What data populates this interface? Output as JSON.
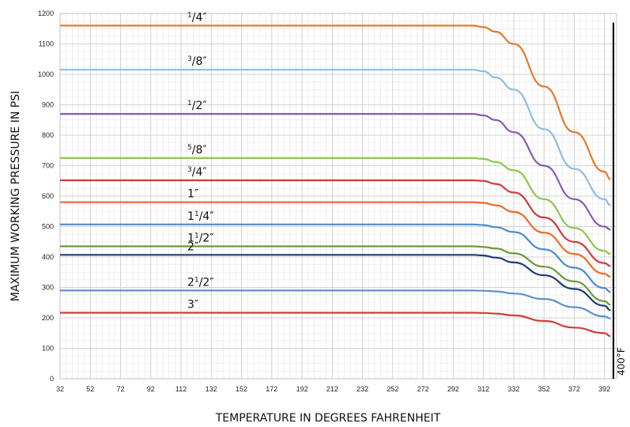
{
  "chart_data": {
    "type": "line",
    "xlabel": "TEMPERATURE IN DEGREES FAHRENHEIT",
    "ylabel": "MAXIMUM WORKING PRESSURE IN PSI",
    "xlim": [
      32,
      400
    ],
    "ylim": [
      0,
      1200
    ],
    "x_ticks": [
      32,
      52,
      72,
      92,
      112,
      132,
      152,
      172,
      192,
      212,
      232,
      252,
      272,
      292,
      312,
      332,
      352,
      372,
      392
    ],
    "y_ticks": [
      0,
      100,
      200,
      300,
      400,
      500,
      600,
      700,
      800,
      900,
      1000,
      1100,
      1200
    ],
    "grid": true,
    "reference_line": {
      "x": 400,
      "label": "400°F"
    },
    "series": [
      {
        "name": "1/4″",
        "label": {
          "pre": "",
          "sup": "1",
          "sub": "/4″"
        },
        "color": "#e8782a",
        "points": [
          [
            32,
            1160
          ],
          [
            305,
            1160
          ],
          [
            312,
            1155
          ],
          [
            320,
            1140
          ],
          [
            332,
            1100
          ],
          [
            352,
            960
          ],
          [
            372,
            810
          ],
          [
            392,
            680
          ],
          [
            396,
            655
          ]
        ]
      },
      {
        "name": "3/8″",
        "label": {
          "pre": "",
          "sup": "3",
          "sub": "/8″"
        },
        "color": "#8fbde0",
        "points": [
          [
            32,
            1015
          ],
          [
            305,
            1015
          ],
          [
            312,
            1010
          ],
          [
            320,
            990
          ],
          [
            332,
            950
          ],
          [
            352,
            820
          ],
          [
            372,
            690
          ],
          [
            392,
            590
          ],
          [
            396,
            570
          ]
        ]
      },
      {
        "name": "1/2″",
        "label": {
          "pre": "",
          "sup": "1",
          "sub": "/2″"
        },
        "color": "#8a5bb0",
        "points": [
          [
            32,
            870
          ],
          [
            305,
            870
          ],
          [
            312,
            865
          ],
          [
            320,
            850
          ],
          [
            332,
            810
          ],
          [
            352,
            700
          ],
          [
            372,
            590
          ],
          [
            392,
            500
          ],
          [
            396,
            490
          ]
        ]
      },
      {
        "name": "5/8″",
        "label": {
          "pre": "",
          "sup": "5",
          "sub": "/8″"
        },
        "color": "#8cc84b",
        "points": [
          [
            32,
            725
          ],
          [
            305,
            725
          ],
          [
            312,
            722
          ],
          [
            320,
            712
          ],
          [
            332,
            685
          ],
          [
            352,
            590
          ],
          [
            372,
            495
          ],
          [
            392,
            420
          ],
          [
            396,
            410
          ]
        ]
      },
      {
        "name": "3/4″",
        "label": {
          "pre": "",
          "sup": "3",
          "sub": "/4″"
        },
        "color": "#cc3b3b",
        "points": [
          [
            32,
            652
          ],
          [
            305,
            652
          ],
          [
            312,
            650
          ],
          [
            320,
            640
          ],
          [
            332,
            612
          ],
          [
            352,
            530
          ],
          [
            372,
            450
          ],
          [
            392,
            380
          ],
          [
            396,
            370
          ]
        ]
      },
      {
        "name": "1″",
        "label": {
          "pre": "1″",
          "sup": "",
          "sub": ""
        },
        "color": "#ee6a2a",
        "points": [
          [
            32,
            580
          ],
          [
            305,
            580
          ],
          [
            312,
            578
          ],
          [
            320,
            570
          ],
          [
            332,
            548
          ],
          [
            352,
            480
          ],
          [
            372,
            410
          ],
          [
            392,
            345
          ],
          [
            396,
            335
          ]
        ]
      },
      {
        "name": "1 1/4″",
        "label": {
          "pre": "1",
          "sup": "1",
          "sub": "/4″"
        },
        "color": "#4a8ccc",
        "points": [
          [
            32,
            507
          ],
          [
            305,
            507
          ],
          [
            312,
            505
          ],
          [
            320,
            498
          ],
          [
            332,
            482
          ],
          [
            352,
            425
          ],
          [
            372,
            365
          ],
          [
            392,
            298
          ],
          [
            396,
            285
          ]
        ]
      },
      {
        "name": "1 1/2″",
        "label": {
          "pre": "1",
          "sup": "1",
          "sub": "/2″"
        },
        "color": "#6b9a3a",
        "points": [
          [
            32,
            435
          ],
          [
            305,
            435
          ],
          [
            312,
            433
          ],
          [
            320,
            428
          ],
          [
            332,
            412
          ],
          [
            352,
            368
          ],
          [
            372,
            320
          ],
          [
            392,
            255
          ],
          [
            396,
            243
          ]
        ]
      },
      {
        "name": "2″",
        "label": {
          "pre": "2″",
          "sup": "",
          "sub": ""
        },
        "color": "#1f3d74",
        "points": [
          [
            32,
            407
          ],
          [
            305,
            407
          ],
          [
            312,
            405
          ],
          [
            320,
            398
          ],
          [
            332,
            382
          ],
          [
            352,
            340
          ],
          [
            372,
            295
          ],
          [
            392,
            240
          ],
          [
            396,
            225
          ]
        ]
      },
      {
        "name": "2 1/2″",
        "label": {
          "pre": "2",
          "sup": "1",
          "sub": "/2″"
        },
        "color": "#5f8fd0",
        "points": [
          [
            32,
            290
          ],
          [
            305,
            290
          ],
          [
            312,
            289
          ],
          [
            320,
            287
          ],
          [
            332,
            280
          ],
          [
            352,
            262
          ],
          [
            372,
            235
          ],
          [
            392,
            205
          ],
          [
            396,
            198
          ]
        ]
      },
      {
        "name": "3″",
        "label": {
          "pre": "3″",
          "sup": "",
          "sub": ""
        },
        "color": "#d23c3c",
        "points": [
          [
            32,
            217
          ],
          [
            305,
            217
          ],
          [
            312,
            216
          ],
          [
            320,
            214
          ],
          [
            332,
            208
          ],
          [
            352,
            190
          ],
          [
            372,
            168
          ],
          [
            392,
            150
          ],
          [
            396,
            140
          ]
        ]
      }
    ]
  }
}
